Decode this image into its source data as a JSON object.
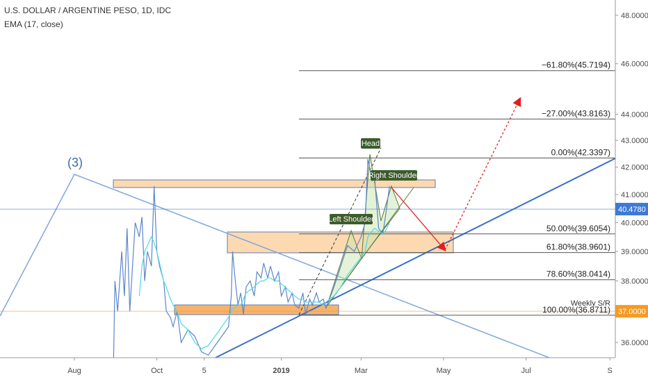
{
  "header": {
    "title": "U.S. DOLLAR / ARGENTINE PESO, 1D, IDC",
    "indicator": "EMA (17, close)"
  },
  "chart_data": {
    "type": "line",
    "log": true,
    "grid": false,
    "xlim": [
      -55,
      400
    ],
    "xticks": [
      {
        "value": 0,
        "label": "Aug"
      },
      {
        "value": 61,
        "label": "Oct"
      },
      {
        "value": 96,
        "label": "5"
      },
      {
        "value": 153,
        "label": "2019"
      },
      {
        "value": 212,
        "label": "Mar"
      },
      {
        "value": 273,
        "label": "May"
      },
      {
        "value": 334,
        "label": "Jul"
      },
      {
        "value": 396,
        "label": "S"
      }
    ],
    "ylim": [
      35.52,
      48.65
    ],
    "yticks": [
      {
        "value": 36,
        "label": "36.0000"
      },
      {
        "value": 38,
        "label": "38.0000"
      },
      {
        "value": 39,
        "label": "39.0000"
      },
      {
        "value": 40,
        "label": "40.0000"
      },
      {
        "value": 41,
        "label": "41.0000"
      },
      {
        "value": 42,
        "label": "42.0000"
      },
      {
        "value": 43,
        "label": "43.0000"
      },
      {
        "value": 44,
        "label": "44.0000"
      },
      {
        "value": 46,
        "label": "46.0000"
      },
      {
        "value": 48,
        "label": "48.0000"
      }
    ],
    "x": [
      29,
      30,
      32,
      35,
      37,
      39,
      41,
      43,
      45,
      48,
      50,
      52,
      54,
      57,
      59,
      61,
      63,
      66,
      68,
      71,
      73,
      76,
      79,
      84,
      89,
      94,
      99,
      104,
      109,
      114,
      116,
      117,
      119,
      121,
      123,
      125,
      127,
      130,
      133,
      135,
      138,
      140,
      143,
      145,
      148,
      151,
      153,
      156,
      158,
      161,
      163,
      166,
      169,
      171,
      174,
      176,
      179,
      181,
      184,
      186,
      192,
      197,
      202,
      207,
      212,
      215,
      217,
      220,
      222,
      225,
      228,
      230,
      233
    ],
    "series": [
      {
        "color": "#5b86c9",
        "values": [
          35.5,
          38,
          37,
          39,
          37.5,
          39.8,
          37,
          38.5,
          40,
          39.5,
          40.2,
          38,
          39,
          38.5,
          41.3,
          39,
          38.5,
          38,
          37,
          36.8,
          36.5,
          37,
          36,
          36.4,
          36.2,
          35.7,
          35.6,
          35.9,
          36.2,
          36.5,
          37.5,
          39,
          38,
          37.2,
          37.6,
          36.9,
          37.8,
          38,
          37.5,
          38.3,
          38.1,
          38.6,
          38.1,
          38.5,
          38,
          38.3,
          37.5,
          37.8,
          37.3,
          37.6,
          37.2,
          37.1,
          37.6,
          36.9,
          37.4,
          37.2,
          37.6,
          37.3,
          37.4,
          37.1,
          37.8,
          38.5,
          39.2,
          39,
          39.5,
          40,
          42.3,
          41.5,
          41.6,
          39.8,
          39.6,
          40.2,
          41.3
        ]
      },
      {
        "color": "#4fd8e8",
        "values": [
          null,
          null,
          null,
          null,
          null,
          null,
          null,
          null,
          null,
          37.5,
          38.5,
          39,
          39.2,
          39.5,
          39.3,
          39,
          38.6,
          38,
          37.8,
          37.4,
          37.2,
          37,
          36.6,
          36.4,
          36,
          35.8,
          35.9,
          36.2,
          36.5,
          36.8,
          37,
          37.1,
          37.1,
          37.2,
          37.2,
          37.4,
          37.6,
          37.7,
          37.8,
          37.9,
          38,
          38,
          38.1,
          38.1,
          38,
          38,
          37.9,
          37.8,
          37.7,
          37.6,
          37.5,
          37.4,
          37.4,
          37.3,
          37.3,
          37.3,
          37.3,
          37.3,
          37.2,
          37.3,
          37.5,
          37.8,
          38.2,
          38.5,
          38.8,
          39,
          39.5,
          39.7,
          39.8,
          39.7,
          39.6,
          39.7,
          40
        ]
      }
    ],
    "fib_levels": [
      {
        "value": 45.7194,
        "label": "−61.80%(45.7194)"
      },
      {
        "value": 43.8163,
        "label": "−27.00%(43.8163)"
      },
      {
        "value": 42.3397,
        "label": "0.00%(42.3397)"
      },
      {
        "value": 39.6054,
        "label": "50.00%(39.6054)"
      },
      {
        "value": 38.9601,
        "label": "61.80%(38.9601)"
      },
      {
        "value": 38.0414,
        "label": "78.60%(38.0414)"
      },
      {
        "value": 36.8711,
        "label": "100.00%(36.8711)"
      }
    ],
    "price_labels": [
      {
        "value": 40.478,
        "label": "40.4780",
        "color": "#3d7ad6"
      },
      {
        "value": 37,
        "label": "37.0000",
        "color": "#f59a23"
      }
    ],
    "annotations": {
      "wave": "(3)",
      "head": "Head",
      "right_shoulder": "Right Shoulder",
      "left_shoulder": "Left Shoulder",
      "support": "Weekly S/R"
    }
  }
}
